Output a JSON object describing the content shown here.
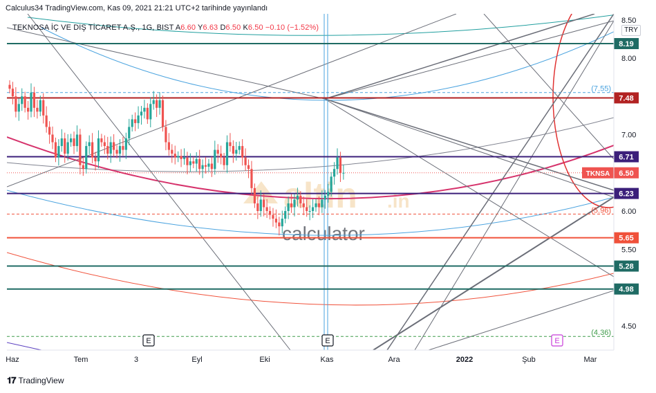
{
  "header": {
    "publisher_line": "Calculus34 TradingView.com, Kas 09, 2021 21:21 UTC+2 tarihinde yayınlandı"
  },
  "symbol": {
    "name": "TEKNOSA İÇ VE DIŞ TİCARET A.Ş., 1G, BIST",
    "open_label": "A",
    "open": "6.60",
    "high_label": "Y",
    "high": "6.63",
    "low_label": "D",
    "low": "6.50",
    "close_label": "K",
    "close": "6.50",
    "change": "−0.10 (−1.52%)",
    "currency": "TRY",
    "ticker_tag": "TKNSA"
  },
  "watermark": {
    "brand_main": "altin",
    "brand_tld": ".in",
    "brand_sub": "calculator"
  },
  "footer": {
    "brand": "TradingView"
  },
  "colors": {
    "teal_line": "#1f6b64",
    "red_line": "#b22222",
    "purple_line": "#3b1f7a",
    "orange_red_line": "#f0513a",
    "crimson_curve": "#d6336c",
    "blue_curve": "#4aa3df",
    "candle_up": "#26a69a",
    "candle_down": "#ef5350",
    "gray_line": "#6b6e78",
    "event_marker": "#131722",
    "event_marker_future": "#c73bd9"
  },
  "chart_data": {
    "type": "candlestick",
    "ylim": [
      4.3,
      8.5
    ],
    "x_ticks": [
      "Haz",
      "Tem",
      "3",
      "Eyl",
      "Eki",
      "Kas",
      "Ara",
      "2022",
      "Şub",
      "Mar"
    ],
    "y_ticks": [
      "4.50",
      "5.50",
      "6.00",
      "7.00",
      "8.00",
      "8.50"
    ],
    "horizontal_levels": [
      {
        "value": 8.19,
        "label": "8.19",
        "color": "teal"
      },
      {
        "value": 7.48,
        "label": "7.48",
        "color": "red"
      },
      {
        "value": 6.71,
        "label": "6.71",
        "color": "purple"
      },
      {
        "value": 6.23,
        "label": "6.23",
        "color": "purple"
      },
      {
        "value": 5.65,
        "label": "5.65",
        "color": "orange-red"
      },
      {
        "value": 5.28,
        "label": "5.28",
        "color": "teal"
      },
      {
        "value": 4.98,
        "label": "4.98",
        "color": "teal"
      }
    ],
    "dashed_levels": [
      {
        "value": 7.55,
        "label": "(7.55)",
        "color": "blue"
      },
      {
        "value": 5.96,
        "label": "(5.96)",
        "color": "red"
      },
      {
        "value": 4.36,
        "label": "(4.36)",
        "color": "green"
      }
    ],
    "last_price": {
      "value": 6.5,
      "label": "6.50"
    },
    "events": [
      "E",
      "E",
      "E"
    ],
    "close_series": [
      7.6,
      7.5,
      7.3,
      7.4,
      7.5,
      7.35,
      7.3,
      7.55,
      7.35,
      7.3,
      7.45,
      7.25,
      7.1,
      7.0,
      6.9,
      6.7,
      6.85,
      6.95,
      6.75,
      6.9,
      6.95,
      6.85,
      7.0,
      6.6,
      6.55,
      6.85,
      6.9,
      6.7,
      6.65,
      6.95,
      6.9,
      6.85,
      6.75,
      6.9,
      6.8,
      6.75,
      6.85,
      6.8,
      6.95,
      7.1,
      7.2,
      7.15,
      7.25,
      7.3,
      7.35,
      7.2,
      7.4,
      7.45,
      7.35,
      7.45,
      7.1,
      6.9,
      6.8,
      6.75,
      6.7,
      6.72,
      6.68,
      6.7,
      6.6,
      6.65,
      6.62,
      6.68,
      6.55,
      6.6,
      6.58,
      6.62,
      6.55,
      6.8,
      6.75,
      6.7,
      6.6,
      6.9,
      6.85,
      6.75,
      6.8,
      6.85,
      6.7,
      6.6,
      6.55,
      6.3,
      6.1,
      6.0,
      6.15,
      6.05,
      6.0,
      5.95,
      5.9,
      5.85,
      5.8,
      5.9,
      6.0,
      6.1,
      6.05,
      6.15,
      6.2,
      6.1,
      6.05,
      6.0,
      6.0,
      6.05,
      6.1,
      6.05,
      6.15,
      6.2,
      6.25,
      6.45,
      6.55,
      6.7,
      6.5,
      6.5
    ]
  }
}
